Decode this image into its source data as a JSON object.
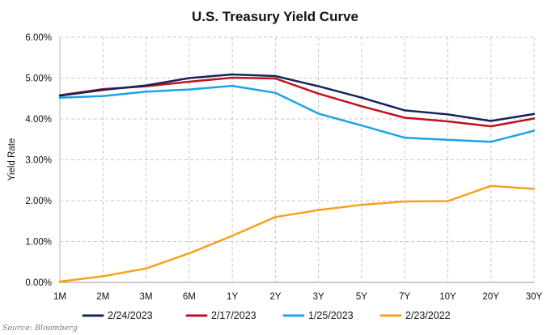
{
  "chart_data": {
    "type": "line",
    "title": "U.S. Treasury Yield Curve",
    "xlabel": "",
    "ylabel": "Yield Rate",
    "categories": [
      "1M",
      "2M",
      "3M",
      "6M",
      "1Y",
      "2Y",
      "3Y",
      "5Y",
      "7Y",
      "10Y",
      "20Y",
      "30Y"
    ],
    "ylim": [
      0,
      6
    ],
    "yticks": [
      0,
      1,
      2,
      3,
      4,
      5,
      6
    ],
    "ytick_labels": [
      "0.00%",
      "1.00%",
      "2.00%",
      "3.00%",
      "4.00%",
      "5.00%",
      "6.00%"
    ],
    "grid": true,
    "legend_position": "bottom",
    "series": [
      {
        "name": "2/24/2023",
        "color": "#14245a",
        "values": [
          4.57,
          4.71,
          4.82,
          5.0,
          5.09,
          5.05,
          4.8,
          4.52,
          4.21,
          4.11,
          3.95,
          4.12
        ]
      },
      {
        "name": "2/17/2023",
        "color": "#c0101f",
        "values": [
          4.58,
          4.73,
          4.8,
          4.91,
          5.01,
          4.99,
          4.62,
          4.31,
          4.03,
          3.94,
          3.82,
          4.01
        ]
      },
      {
        "name": "1/25/2023",
        "color": "#1aa3e8",
        "values": [
          4.52,
          4.56,
          4.67,
          4.72,
          4.81,
          4.64,
          4.13,
          3.84,
          3.54,
          3.49,
          3.44,
          3.71
        ]
      },
      {
        "name": "2/23/2022",
        "color": "#f5a21c",
        "values": [
          0.02,
          0.15,
          0.34,
          0.71,
          1.14,
          1.6,
          1.77,
          1.9,
          1.98,
          1.99,
          2.36,
          2.29
        ]
      }
    ],
    "source": "Source: Bloomberg"
  }
}
